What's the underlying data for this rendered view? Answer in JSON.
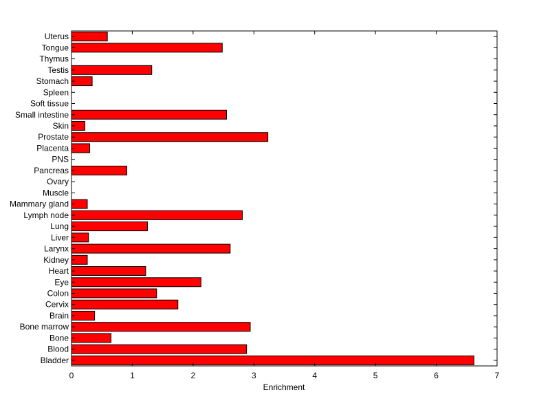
{
  "chart_data": {
    "type": "bar",
    "orientation": "horizontal",
    "title": "",
    "xlabel": "Enrichment",
    "ylabel": "",
    "xlim": [
      0,
      7
    ],
    "xticks": [
      0,
      1,
      2,
      3,
      4,
      5,
      6,
      7
    ],
    "grid": false,
    "categories": [
      "Bladder",
      "Blood",
      "Bone",
      "Bone marrow",
      "Brain",
      "Cervix",
      "Colon",
      "Eye",
      "Heart",
      "Kidney",
      "Larynx",
      "Liver",
      "Lung",
      "Lymph node",
      "Mammary gland",
      "Muscle",
      "Ovary",
      "Pancreas",
      "PNS",
      "Placenta",
      "Prostate",
      "Skin",
      "Small intestine",
      "Soft tissue",
      "Spleen",
      "Stomach",
      "Testis",
      "Thymus",
      "Tongue",
      "Uterus"
    ],
    "values": [
      6.62,
      2.88,
      0.65,
      2.94,
      0.38,
      1.75,
      1.4,
      2.13,
      1.22,
      0.26,
      2.61,
      0.28,
      1.25,
      2.81,
      0.26,
      0,
      0,
      0.91,
      0,
      0.3,
      3.23,
      0.22,
      2.55,
      0,
      0,
      0.34,
      1.32,
      0,
      2.48,
      0.59
    ],
    "bar_color": "#ff0000",
    "bar_edge_color": "#000000"
  }
}
